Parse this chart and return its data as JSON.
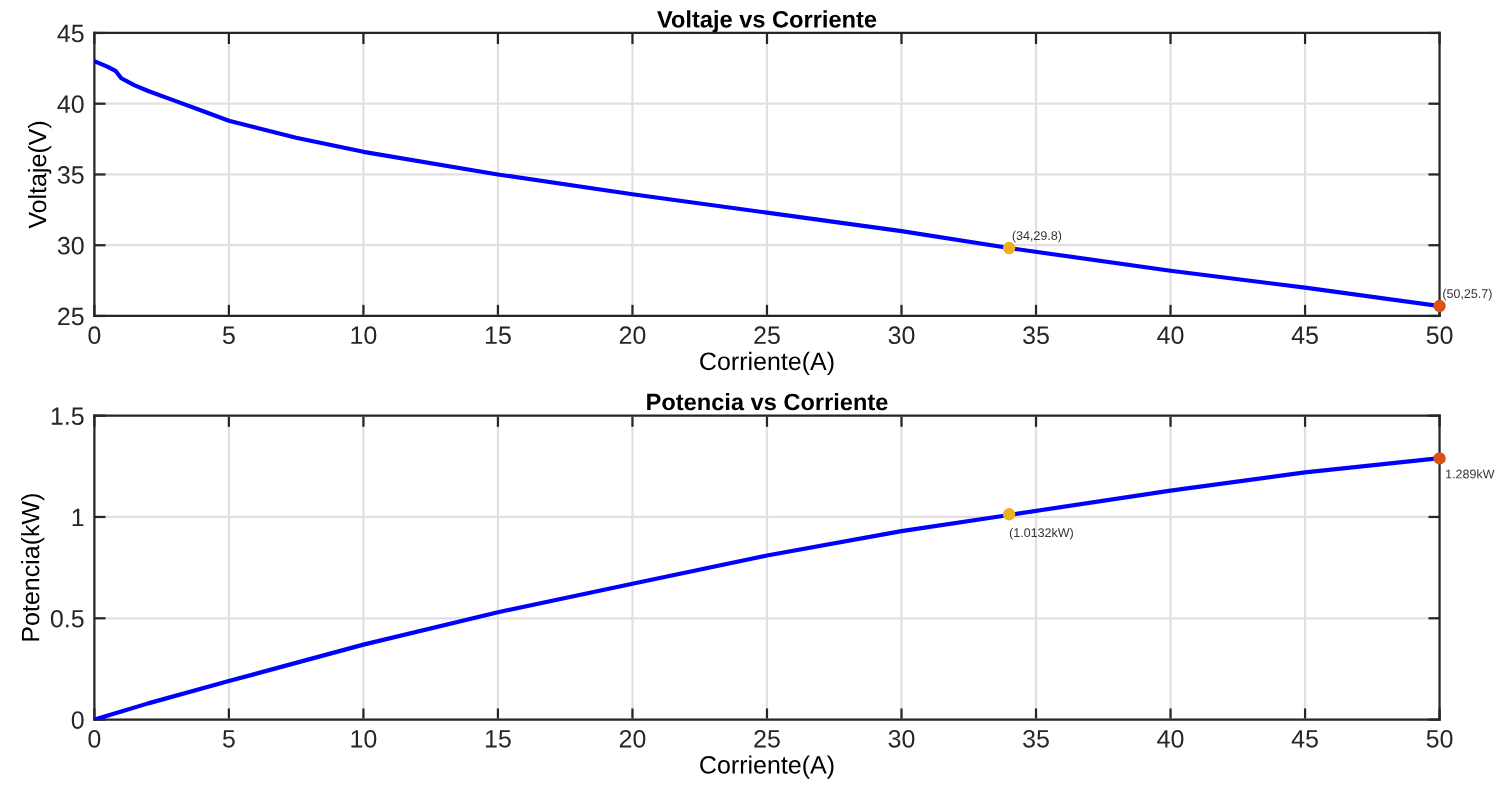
{
  "chart_data": [
    {
      "type": "line",
      "title": "Voltaje vs Corriente",
      "xlabel": "Corriente(A)",
      "ylabel": "Voltaje(V)",
      "xlim": [
        0,
        50
      ],
      "ylim": [
        25,
        45
      ],
      "xticks": [
        0,
        5,
        10,
        15,
        20,
        25,
        30,
        35,
        40,
        45,
        50
      ],
      "yticks": [
        25,
        30,
        35,
        40,
        45
      ],
      "grid": true,
      "line_style": "solid",
      "series": [
        {
          "color": "#0000ff",
          "x": [
            0,
            0.5,
            0.8,
            1,
            1.5,
            2,
            3,
            4,
            5,
            7.5,
            10,
            15,
            20,
            25,
            30,
            34,
            40,
            45,
            50
          ],
          "values": [
            43,
            42.6,
            42.3,
            41.8,
            41.3,
            40.9,
            40.2,
            39.5,
            38.8,
            37.6,
            36.6,
            35.0,
            33.6,
            32.3,
            31.0,
            29.8,
            28.2,
            27.0,
            25.7
          ]
        },
        {
          "type": "scatter",
          "x": [
            34,
            50
          ],
          "values": [
            29.8,
            25.7
          ],
          "colors": [
            "#edb120",
            "#d95319"
          ],
          "marker": "circle",
          "value_labels": [
            "(34,29.8)",
            "(50,25.7)"
          ]
        }
      ]
    },
    {
      "type": "line",
      "title": "Potencia vs Corriente",
      "xlabel": "Corriente(A)",
      "ylabel": "Potencia(kW)",
      "xlim": [
        0,
        50
      ],
      "ylim": [
        0,
        1.5
      ],
      "xticks": [
        0,
        5,
        10,
        15,
        20,
        25,
        30,
        35,
        40,
        45,
        50
      ],
      "yticks": [
        0,
        0.5,
        1,
        1.5
      ],
      "grid": true,
      "line_style": "solid",
      "series": [
        {
          "color": "#0000ff",
          "x": [
            0,
            1,
            2,
            5,
            10,
            15,
            20,
            25,
            30,
            34,
            40,
            45,
            50
          ],
          "values": [
            0,
            0.04,
            0.08,
            0.19,
            0.37,
            0.53,
            0.67,
            0.81,
            0.93,
            1.01,
            1.13,
            1.22,
            1.29
          ]
        },
        {
          "type": "scatter",
          "x": [
            34,
            50
          ],
          "values": [
            1.0132,
            1.289
          ],
          "colors": [
            "#edb120",
            "#d95319"
          ],
          "marker": "circle",
          "value_labels": [
            "(1.0132kW)",
            "1.289kW"
          ]
        }
      ]
    }
  ]
}
